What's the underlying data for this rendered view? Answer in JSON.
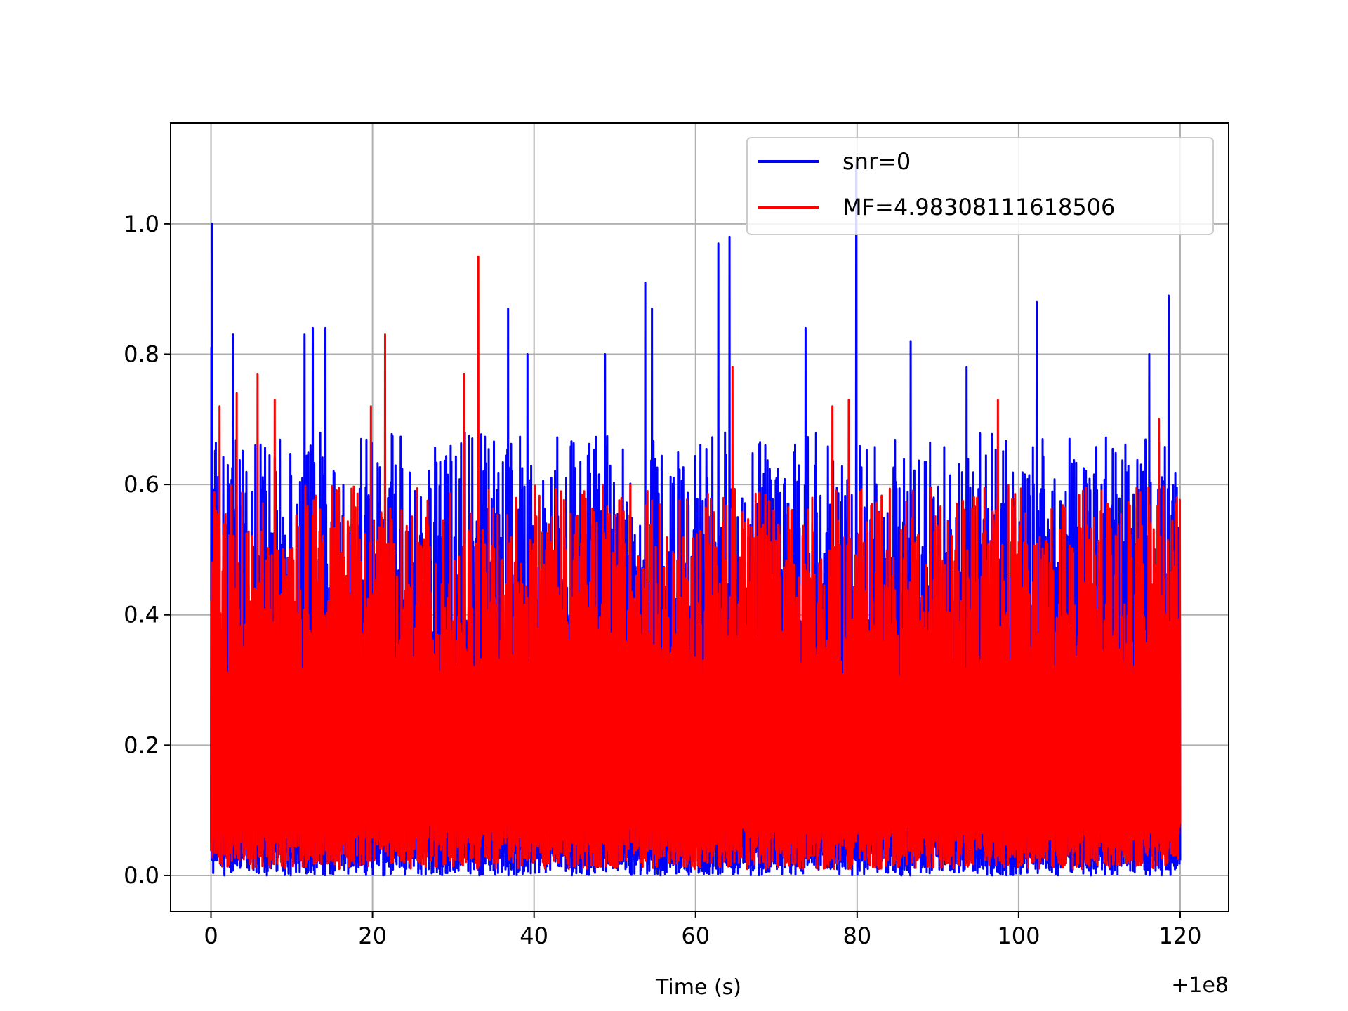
{
  "chart_data": {
    "type": "line",
    "title": "",
    "xlabel": "Time (s)",
    "ylabel": "",
    "x_offset_label": "+1e8",
    "xlim": [
      -5,
      126
    ],
    "ylim": [
      -0.055,
      1.155
    ],
    "x_ticks": [
      0,
      20,
      40,
      60,
      80,
      100,
      120
    ],
    "x_tick_labels": [
      "0",
      "20",
      "40",
      "60",
      "80",
      "100",
      "120"
    ],
    "y_ticks": [
      0.0,
      0.2,
      0.4,
      0.6,
      0.8,
      1.0
    ],
    "y_tick_labels": [
      "0.0",
      "0.2",
      "0.4",
      "0.6",
      "0.8",
      "1.0"
    ],
    "grid": true,
    "legend_position": "top-right",
    "x_range": [
      0,
      120
    ],
    "series": [
      {
        "name": "snr=0",
        "color": "#0000ff",
        "peaks": [
          {
            "x": 0.1,
            "y": 1.0
          },
          {
            "x": 0.05,
            "y": 0.81
          },
          {
            "x": 2.7,
            "y": 0.83
          },
          {
            "x": 11.6,
            "y": 0.83
          },
          {
            "x": 12.6,
            "y": 0.84
          },
          {
            "x": 14.2,
            "y": 0.84
          },
          {
            "x": 36.8,
            "y": 0.87
          },
          {
            "x": 39.2,
            "y": 0.8
          },
          {
            "x": 48.8,
            "y": 0.8
          },
          {
            "x": 53.8,
            "y": 0.91
          },
          {
            "x": 54.6,
            "y": 0.87
          },
          {
            "x": 62.8,
            "y": 0.97
          },
          {
            "x": 64.2,
            "y": 0.98
          },
          {
            "x": 73.6,
            "y": 0.84
          },
          {
            "x": 79.9,
            "y": 1.09
          },
          {
            "x": 86.6,
            "y": 0.82
          },
          {
            "x": 93.6,
            "y": 0.78
          },
          {
            "x": 102.2,
            "y": 0.88
          },
          {
            "x": 116.2,
            "y": 0.8
          },
          {
            "x": 118.6,
            "y": 0.89
          }
        ]
      },
      {
        "name": "MF=4.98308111618506",
        "color": "#ff0000",
        "peaks": [
          {
            "x": 33.1,
            "y": 0.95
          },
          {
            "x": 21.6,
            "y": 0.83
          },
          {
            "x": 5.8,
            "y": 0.77
          },
          {
            "x": 31.3,
            "y": 0.77
          },
          {
            "x": 7.9,
            "y": 0.73
          },
          {
            "x": 19.8,
            "y": 0.72
          },
          {
            "x": 64.6,
            "y": 0.78
          },
          {
            "x": 97.4,
            "y": 0.73
          },
          {
            "x": 79.0,
            "y": 0.73
          },
          {
            "x": 76.9,
            "y": 0.72
          },
          {
            "x": 117.4,
            "y": 0.7
          },
          {
            "x": 1.1,
            "y": 0.72
          },
          {
            "x": 3.2,
            "y": 0.74
          }
        ]
      }
    ]
  }
}
